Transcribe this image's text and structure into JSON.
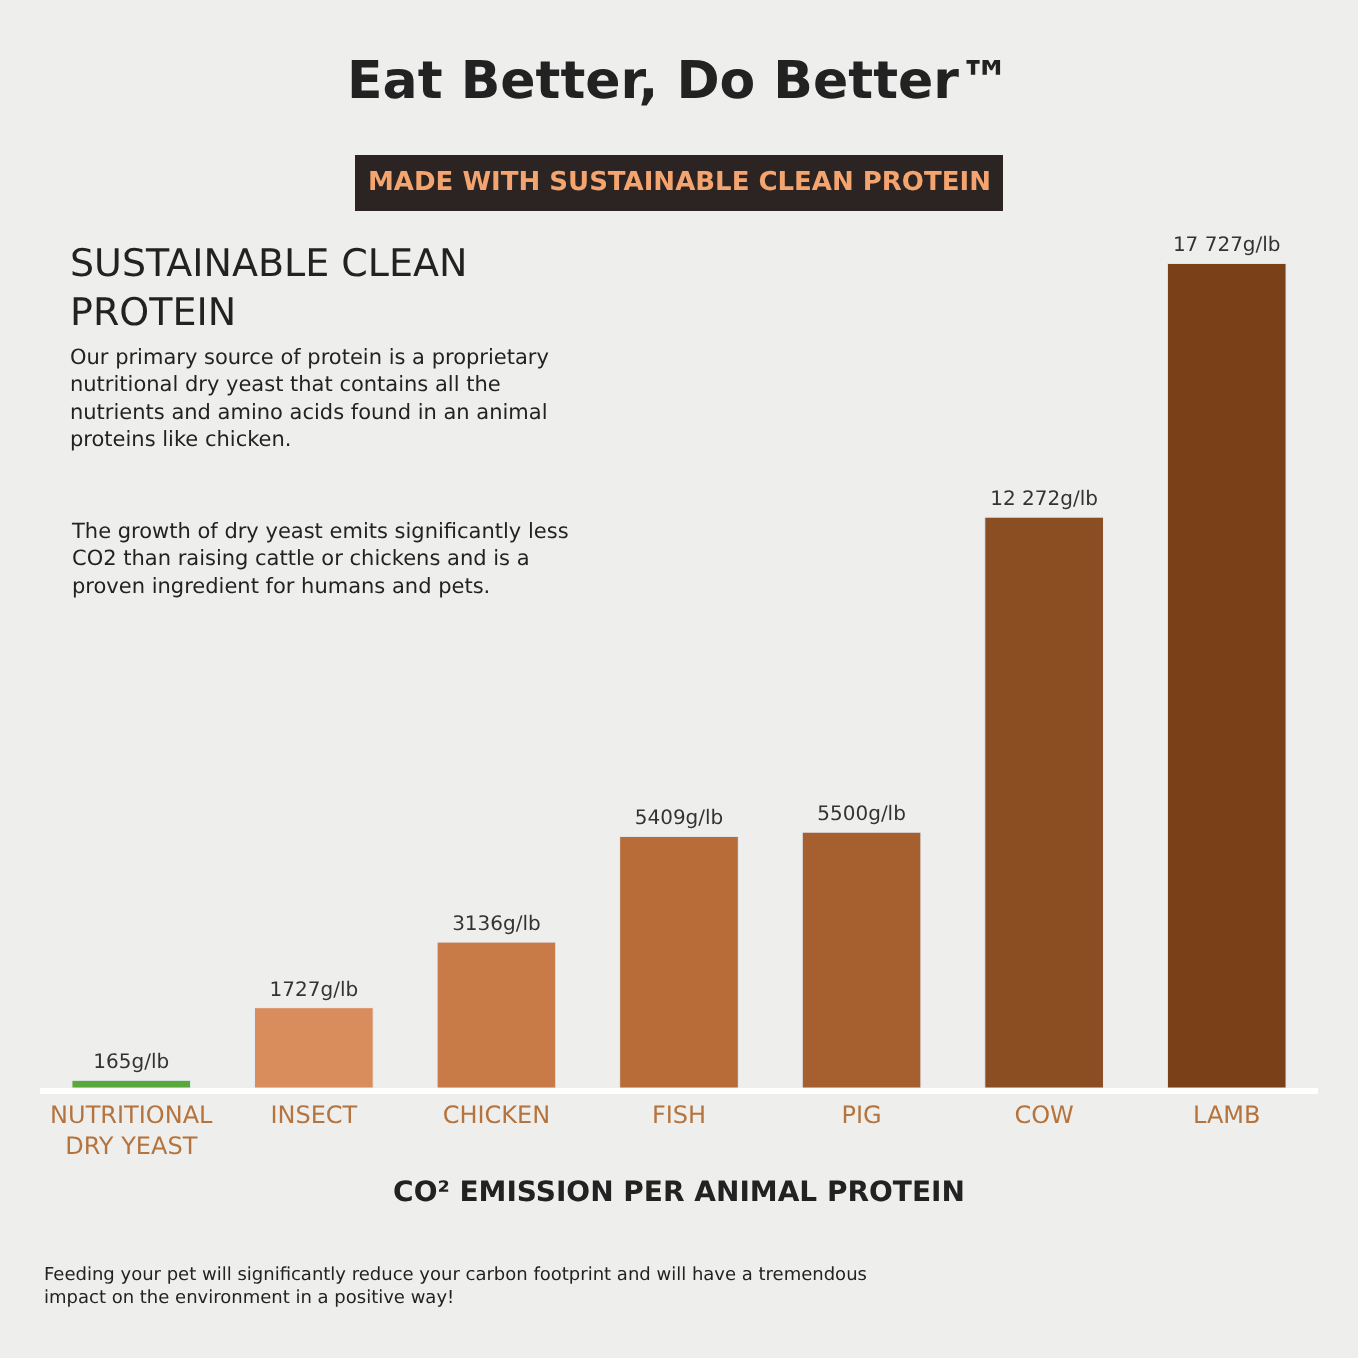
{
  "chart_data": {
    "type": "bar",
    "title": "Eat Better, Do Better™",
    "subtitle": "MADE WITH SUSTAINABLE CLEAN PROTEIN",
    "xlabel": "CO² EMISSION PER ANIMAL PROTEIN",
    "categories": [
      "NUTRITIONAL DRY YEAST",
      "INSECT",
      "CHICKEN",
      "FISH",
      "PIG",
      "COW",
      "LAMB"
    ],
    "values": [
      165,
      1727,
      3136,
      5409,
      5500,
      12272,
      17727
    ],
    "value_labels": [
      "165g/lb",
      "1727g/lb",
      "3136g/lb",
      "5409g/lb",
      "5500g/lb",
      "12 272g/lb",
      "17 727g/lb"
    ],
    "colors": [
      "#5aa83a",
      "#d98c5c",
      "#c97b47",
      "#b86c38",
      "#a65f2e",
      "#8b4e22",
      "#7a4119"
    ],
    "annotations": [
      "SUSTAINABLE CLEAN PROTEIN",
      "Our primary source of protein is a proprietary nutritional dry yeast that contains all the nutrients and amino acids found in an animal proteins like chicken.",
      "The growth of dry yeast emits significantly less CO2 than raising cattle or chickens and is a proven ingredient for humans and pets.",
      "Feeding your pet will significantly reduce your carbon footprint and will have a tremendous impact on the environment in a positive way!"
    ],
    "legend": false,
    "grid": false
  }
}
